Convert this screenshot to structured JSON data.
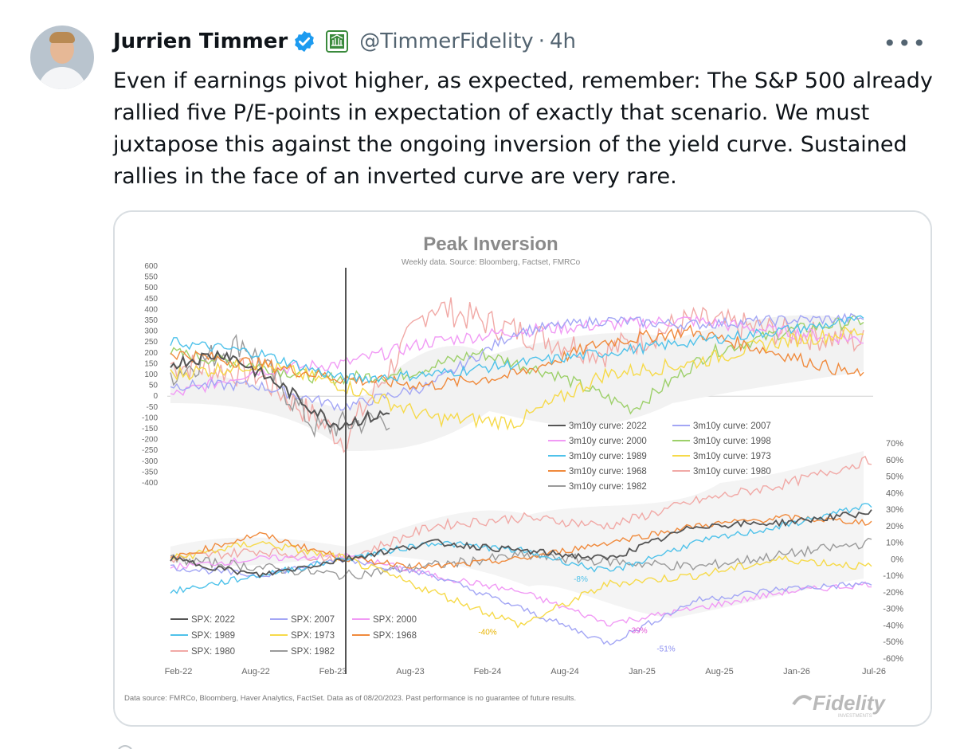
{
  "tweet": {
    "author_name": "Jurrien Timmer",
    "handle": "@TimmerFidelity",
    "separator": "·",
    "time": "4h",
    "more_icon": "more-horizontal-icon",
    "text": "Even if earnings pivot higher, as expected, remember: The S&P 500 already rallied five P/E-points in expectation of exactly that scenario. We must juxtapose this against the ongoing inversion of the yield curve. Sustained rallies in the face of an inverted curve are very rare."
  },
  "colors": {
    "verified_blue": "#1d9bf0",
    "fidelity_green": "#3a8a3c",
    "muted": "#536471"
  },
  "chart_data": {
    "type": "line",
    "title": "Peak Inversion",
    "subtitle": "Weekly data.  Source: Bloomberg, Factset, FMRCo",
    "x_ticks": [
      "Feb-22",
      "Aug-22",
      "Feb-23",
      "Aug-23",
      "Feb-24",
      "Aug-24",
      "Jan-25",
      "Aug-25",
      "Jan-26",
      "Jul-26"
    ],
    "left_axis_ticks": [
      "600",
      "550",
      "500",
      "450",
      "400",
      "350",
      "300",
      "250",
      "200",
      "150",
      "100",
      "50",
      "0",
      "-50",
      "-100",
      "-150",
      "-200",
      "-250",
      "-300",
      "-350",
      "-400"
    ],
    "left_ylim": [
      -400,
      600
    ],
    "right_axis_ticks": [
      "70%",
      "60%",
      "50%",
      "40%",
      "30%",
      "20%",
      "10%",
      "0%",
      "-10%",
      "-20%",
      "-30%",
      "-40%",
      "-50%",
      "-60%"
    ],
    "right_ylim": [
      -0.6,
      0.7
    ],
    "curve_legend": [
      {
        "name": "3m10y curve: 2022",
        "color": "#555555"
      },
      {
        "name": "3m10y curve: 2007",
        "color": "#a3a6f5"
      },
      {
        "name": "3m10y curve: 2000",
        "color": "#f19af5"
      },
      {
        "name": "3m10y curve: 1998",
        "color": "#9dd06a"
      },
      {
        "name": "3m10y curve: 1989",
        "color": "#4fc2ea"
      },
      {
        "name": "3m10y curve: 1973",
        "color": "#f6da4a"
      },
      {
        "name": "3m10y curve: 1968",
        "color": "#f08a3c"
      },
      {
        "name": "3m10y curve: 1980",
        "color": "#f1a9a6"
      },
      {
        "name": "3m10y curve: 1982",
        "color": "#9a9a9a"
      }
    ],
    "spx_legend": [
      {
        "name": "SPX: 2022",
        "color": "#555555"
      },
      {
        "name": "SPX: 2007",
        "color": "#a3a6f5"
      },
      {
        "name": "SPX: 2000",
        "color": "#f19af5"
      },
      {
        "name": "SPX: 1989",
        "color": "#4fc2ea"
      },
      {
        "name": "SPX: 1973",
        "color": "#f6da4a"
      },
      {
        "name": "SPX: 1968",
        "color": "#f08a3c"
      },
      {
        "name": "SPX: 1980",
        "color": "#f1a9a6"
      },
      {
        "name": "SPX: 1982",
        "color": "#9a9a9a"
      }
    ],
    "annotations": [
      {
        "text": "-8%",
        "x": "Aug-24",
        "y": -0.08,
        "color": "#4fc2ea"
      },
      {
        "text": "-40%",
        "x": "Feb-24",
        "y": -0.4,
        "color": "#e8b400"
      },
      {
        "text": "-39%",
        "x": "Jan-25",
        "y": -0.39,
        "color": "#e356d6"
      },
      {
        "text": "-51%",
        "x": "Jan-25",
        "y": -0.51,
        "color": "#8c8ff0"
      }
    ],
    "footnote": "Data source: FMRCo, Bloomberg, Haver Analytics, FactSet. Data as of 08/20/2023. Past performance is no guarantee of future results.",
    "brand": "Fidelity",
    "brand_sub": "INVESTMENTS"
  }
}
